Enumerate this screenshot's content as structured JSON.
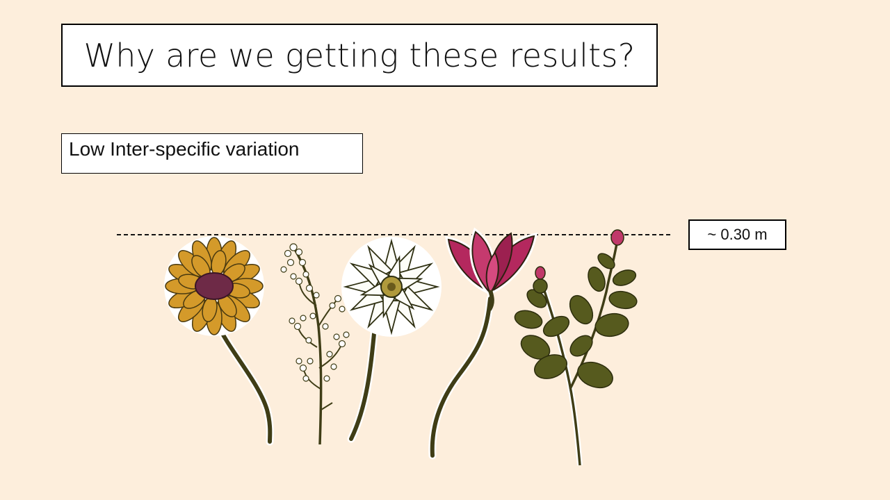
{
  "slide": {
    "title": "Why are we getting these results?",
    "subtitle": "Low Inter-specific  variation",
    "height_marker": "~ 0.30 m"
  },
  "colors": {
    "background": "#fdeedc",
    "sunflower": "#d49a2a",
    "sunflower_center": "#6e2a47",
    "magnolia": "#b4285e",
    "leaf": "#565a1e",
    "stem": "#3f3d16"
  },
  "illustration": {
    "flowers": [
      "sunflower",
      "baby's breath sprig",
      "white dahlia",
      "magnolia",
      "leafy sprig with buds"
    ]
  }
}
